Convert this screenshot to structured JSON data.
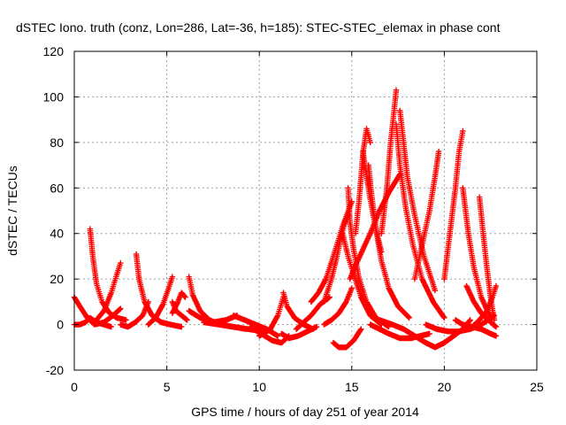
{
  "chart_data": {
    "type": "scatter",
    "title": "dSTEC Iono. truth (conz, Lon=286, Lat=-36, h=185): STEC-STEC_elemax in phase cont",
    "xlabel": "GPS time / hours of day 251 of year 2014",
    "ylabel": "dSTEC  / TECUs",
    "xlim": [
      0,
      25
    ],
    "ylim": [
      -20,
      120
    ],
    "xticks": [
      "0",
      "5",
      "10",
      "15",
      "20",
      "25"
    ],
    "yticks": [
      "-20",
      "0",
      "20",
      "40",
      "60",
      "80",
      "100",
      "120"
    ],
    "grid": true,
    "marker": "+",
    "color": "#ff0000",
    "series": [
      {
        "x": [
          0.0,
          0.3,
          0.6,
          0.85,
          1.2,
          1.6,
          2.0
        ],
        "y": [
          0,
          0,
          1,
          3,
          1,
          0,
          -1
        ]
      },
      {
        "x": [
          0.0,
          0.3,
          0.7,
          1.1,
          1.6,
          2.1,
          2.5
        ],
        "y": [
          12,
          8,
          3,
          0,
          1,
          4,
          7
        ]
      },
      {
        "x": [
          0.85,
          1.0,
          1.2,
          1.5,
          1.9,
          2.3,
          2.8
        ],
        "y": [
          42,
          30,
          18,
          10,
          5,
          3,
          2
        ]
      },
      {
        "x": [
          1.2,
          1.6,
          2.0,
          2.3,
          2.5
        ],
        "y": [
          2,
          6,
          14,
          22,
          27
        ]
      },
      {
        "x": [
          2.5,
          2.9,
          3.3,
          3.7,
          4.0
        ],
        "y": [
          0,
          -1,
          1,
          4,
          10
        ]
      },
      {
        "x": [
          3.35,
          3.5,
          3.8,
          4.2,
          4.7,
          5.2,
          5.8
        ],
        "y": [
          31,
          20,
          10,
          4,
          1,
          0,
          -1
        ]
      },
      {
        "x": [
          4.0,
          4.4,
          4.8,
          5.1,
          5.3
        ],
        "y": [
          0,
          3,
          9,
          16,
          21
        ]
      },
      {
        "x": [
          5.3,
          5.5,
          5.8,
          6.1
        ],
        "y": [
          10,
          6,
          4,
          2
        ]
      },
      {
        "x": [
          5.3,
          5.6,
          5.8,
          6.0
        ],
        "y": [
          5,
          10,
          14,
          12
        ]
      },
      {
        "x": [
          6.2,
          6.4,
          6.8,
          7.3,
          7.9,
          8.6,
          9.3
        ],
        "y": [
          21,
          13,
          6,
          2,
          0,
          -1,
          -2
        ]
      },
      {
        "x": [
          6.2,
          6.8,
          7.5,
          8.2,
          8.8
        ],
        "y": [
          6,
          3,
          1,
          2,
          4
        ]
      },
      {
        "x": [
          7.0,
          7.8,
          8.6,
          9.4,
          10.2
        ],
        "y": [
          1,
          0,
          -1,
          -2,
          -3
        ]
      },
      {
        "x": [
          8.6,
          9.2,
          9.8,
          10.4,
          11.0
        ],
        "y": [
          4,
          2,
          0,
          -2,
          -5
        ]
      },
      {
        "x": [
          9.5,
          10.1,
          10.7,
          11.2,
          11.6
        ],
        "y": [
          -1,
          -4,
          -7,
          -8,
          -5
        ]
      },
      {
        "x": [
          10.0,
          10.6,
          11.0,
          11.3
        ],
        "y": [
          -5,
          -2,
          4,
          12
        ]
      },
      {
        "x": [
          11.2,
          11.6,
          12.1,
          12.6,
          13.1
        ],
        "y": [
          -4,
          -6,
          -5,
          -3,
          -1
        ]
      },
      {
        "x": [
          11.3,
          11.5,
          11.9,
          12.4,
          12.9
        ],
        "y": [
          14,
          8,
          3,
          0,
          -2
        ]
      },
      {
        "x": [
          12.0,
          12.4,
          12.8,
          13.3,
          13.8
        ],
        "y": [
          -2,
          1,
          4,
          9,
          12
        ]
      },
      {
        "x": [
          12.8,
          13.2,
          13.6,
          14.0,
          14.5,
          15.0
        ],
        "y": [
          10,
          14,
          20,
          30,
          43,
          54
        ]
      },
      {
        "x": [
          13.5,
          13.9,
          14.2,
          14.4,
          14.6,
          14.8
        ],
        "y": [
          10,
          20,
          30,
          38,
          44,
          48
        ]
      },
      {
        "x": [
          13.5,
          13.9,
          14.3,
          14.7,
          15.0
        ],
        "y": [
          0,
          2,
          5,
          10,
          16
        ]
      },
      {
        "x": [
          14.5,
          14.8,
          15.1,
          15.5,
          16.0,
          16.6
        ],
        "y": [
          40,
          30,
          22,
          12,
          4,
          0
        ]
      },
      {
        "x": [
          14.8,
          14.9,
          15.1,
          15.4,
          15.8,
          16.3,
          17.0
        ],
        "y": [
          60,
          45,
          33,
          20,
          10,
          3,
          -1
        ]
      },
      {
        "x": [
          14.0,
          14.3,
          14.7,
          15.1,
          15.5
        ],
        "y": [
          -8,
          -10,
          -10,
          -7,
          -2
        ]
      },
      {
        "x": [
          14.9,
          15.2,
          15.6,
          16.0,
          16.5,
          17.0,
          17.6
        ],
        "y": [
          20,
          26,
          33,
          40,
          50,
          58,
          66
        ]
      },
      {
        "x": [
          15.2,
          15.4,
          15.6,
          15.8,
          16.0
        ],
        "y": [
          40,
          55,
          75,
          86,
          80
        ]
      },
      {
        "x": [
          15.9,
          16.1,
          16.3,
          16.6,
          17.0,
          17.5,
          18.1
        ],
        "y": [
          70,
          55,
          42,
          28,
          16,
          8,
          3
        ]
      },
      {
        "x": [
          15.6,
          15.8,
          16.0,
          16.3,
          16.6
        ],
        "y": [
          76,
          65,
          55,
          42,
          32
        ]
      },
      {
        "x": [
          16.6,
          16.9,
          17.1,
          17.3,
          17.4
        ],
        "y": [
          40,
          60,
          80,
          95,
          103
        ]
      },
      {
        "x": [
          17.4,
          17.6,
          17.9,
          18.3,
          18.8,
          19.4,
          20.0
        ],
        "y": [
          88,
          70,
          52,
          35,
          20,
          10,
          3
        ]
      },
      {
        "x": [
          17.6,
          17.8,
          18.0,
          18.4,
          18.9,
          19.5
        ],
        "y": [
          94,
          80,
          65,
          48,
          30,
          15
        ]
      },
      {
        "x": [
          16.0,
          16.5,
          17.0,
          17.6,
          18.2,
          18.7,
          19.2
        ],
        "y": [
          0,
          -2,
          -4,
          -6,
          -6,
          -5,
          -4
        ]
      },
      {
        "x": [
          16.5,
          17.2,
          17.8,
          18.4,
          19.0,
          19.5
        ],
        "y": [
          2,
          0,
          -2,
          -5,
          -8,
          -10
        ]
      },
      {
        "x": [
          18.4,
          18.8,
          19.2,
          19.5,
          19.7
        ],
        "y": [
          20,
          35,
          50,
          65,
          76
        ]
      },
      {
        "x": [
          19.5,
          20.0,
          20.5,
          21.0,
          21.4
        ],
        "y": [
          -10,
          -8,
          -5,
          -2,
          2
        ]
      },
      {
        "x": [
          20.0,
          20.3,
          20.6,
          20.8,
          21.0
        ],
        "y": [
          20,
          40,
          60,
          76,
          85
        ]
      },
      {
        "x": [
          21.0,
          21.3,
          21.6,
          22.0,
          22.5
        ],
        "y": [
          60,
          40,
          25,
          12,
          3
        ]
      },
      {
        "x": [
          21.2,
          21.6,
          22.0,
          22.5,
          22.8
        ],
        "y": [
          17,
          10,
          5,
          1,
          -1
        ]
      },
      {
        "x": [
          21.9,
          22.1,
          22.3,
          22.5,
          22.7
        ],
        "y": [
          56,
          40,
          25,
          12,
          2
        ]
      },
      {
        "x": [
          21.5,
          21.9,
          22.3,
          22.6,
          22.8
        ],
        "y": [
          -1,
          2,
          6,
          12,
          17
        ]
      },
      {
        "x": [
          19.0,
          19.6,
          20.2,
          20.8,
          21.4,
          22.0,
          22.7
        ],
        "y": [
          0,
          -2,
          -3,
          -3,
          -2,
          0,
          4
        ]
      },
      {
        "x": [
          20.6,
          21.0,
          21.5,
          22.0,
          22.5,
          22.8
        ],
        "y": [
          2,
          0,
          -1,
          -2,
          -4,
          -5
        ]
      }
    ]
  }
}
